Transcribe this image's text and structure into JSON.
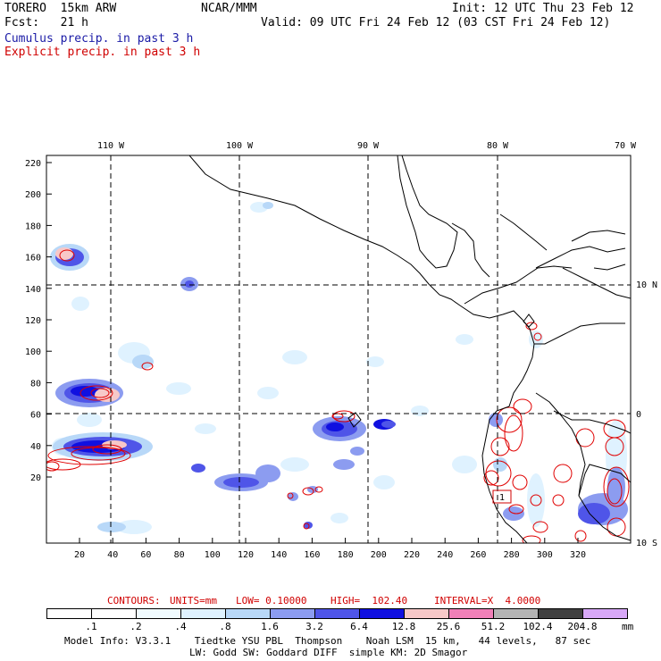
{
  "header": {
    "model": "TORERO  15km ARW",
    "org": "NCAR/MMM",
    "init": "Init: 12 UTC Thu 23 Feb 12",
    "fcst": "Fcst:   21 h",
    "valid": "Valid: 09 UTC Fri 24 Feb 12 (03 CST Fri 24 Feb 12)",
    "field1": "Cumulus precip. in past 3 h",
    "field2": "Explicit precip. in past 3 h"
  },
  "map": {
    "lon_labels": [
      "110 W",
      "100 W",
      "90 W",
      "80 W",
      "70 W"
    ],
    "lat_labels": [
      "10 N",
      "0",
      "10 S"
    ],
    "y_ticks": [
      "220",
      "200",
      "180",
      "160",
      "140",
      "120",
      "100",
      "80",
      "60",
      "40",
      "20"
    ],
    "x_ticks": [
      "20",
      "40",
      "60",
      "80",
      "100",
      "120",
      "140",
      "160",
      "180",
      "200",
      "220",
      "240",
      "260",
      "280",
      "300",
      "320"
    ],
    "box_label": "1",
    "colors": {
      "coast": "#000000",
      "contour": "#e00000",
      "c1": "#dff2ff",
      "c2": "#b8d8f8",
      "c3": "#8c9cf0",
      "c4": "#4f55e8",
      "c5": "#1010e0",
      "pink": "#f7c8c8"
    }
  },
  "contours_line": {
    "label": "CONTOURS:",
    "units": "UNITS=mm",
    "low": "LOW= 0.10000",
    "high": "HIGH=  102.40",
    "interval": "INTERVAL=X  4.0000"
  },
  "legend": {
    "colors": [
      "#ffffff",
      "#ffffff",
      "#f0fbff",
      "#dff2ff",
      "#b8d8f8",
      "#8c9cf0",
      "#4f55e8",
      "#1010e0",
      "#f7c8c8",
      "#f080b8",
      "#b4b4b4",
      "#404040",
      "#d8a8f8"
    ],
    "labels": [
      ".1",
      ".2",
      ".4",
      ".8",
      "1.6",
      "3.2",
      "6.4",
      "12.8",
      "25.6",
      "51.2",
      "102.4",
      "204.8"
    ],
    "unit": "mm"
  },
  "footer": {
    "line1": "Model Info: V3.3.1    Tiedtke YSU PBL  Thompson    Noah LSM  15 km,   44 levels,   87 sec",
    "line2": "LW: Godd SW: Goddard DIFF  simple KM: 2D Smagor"
  }
}
